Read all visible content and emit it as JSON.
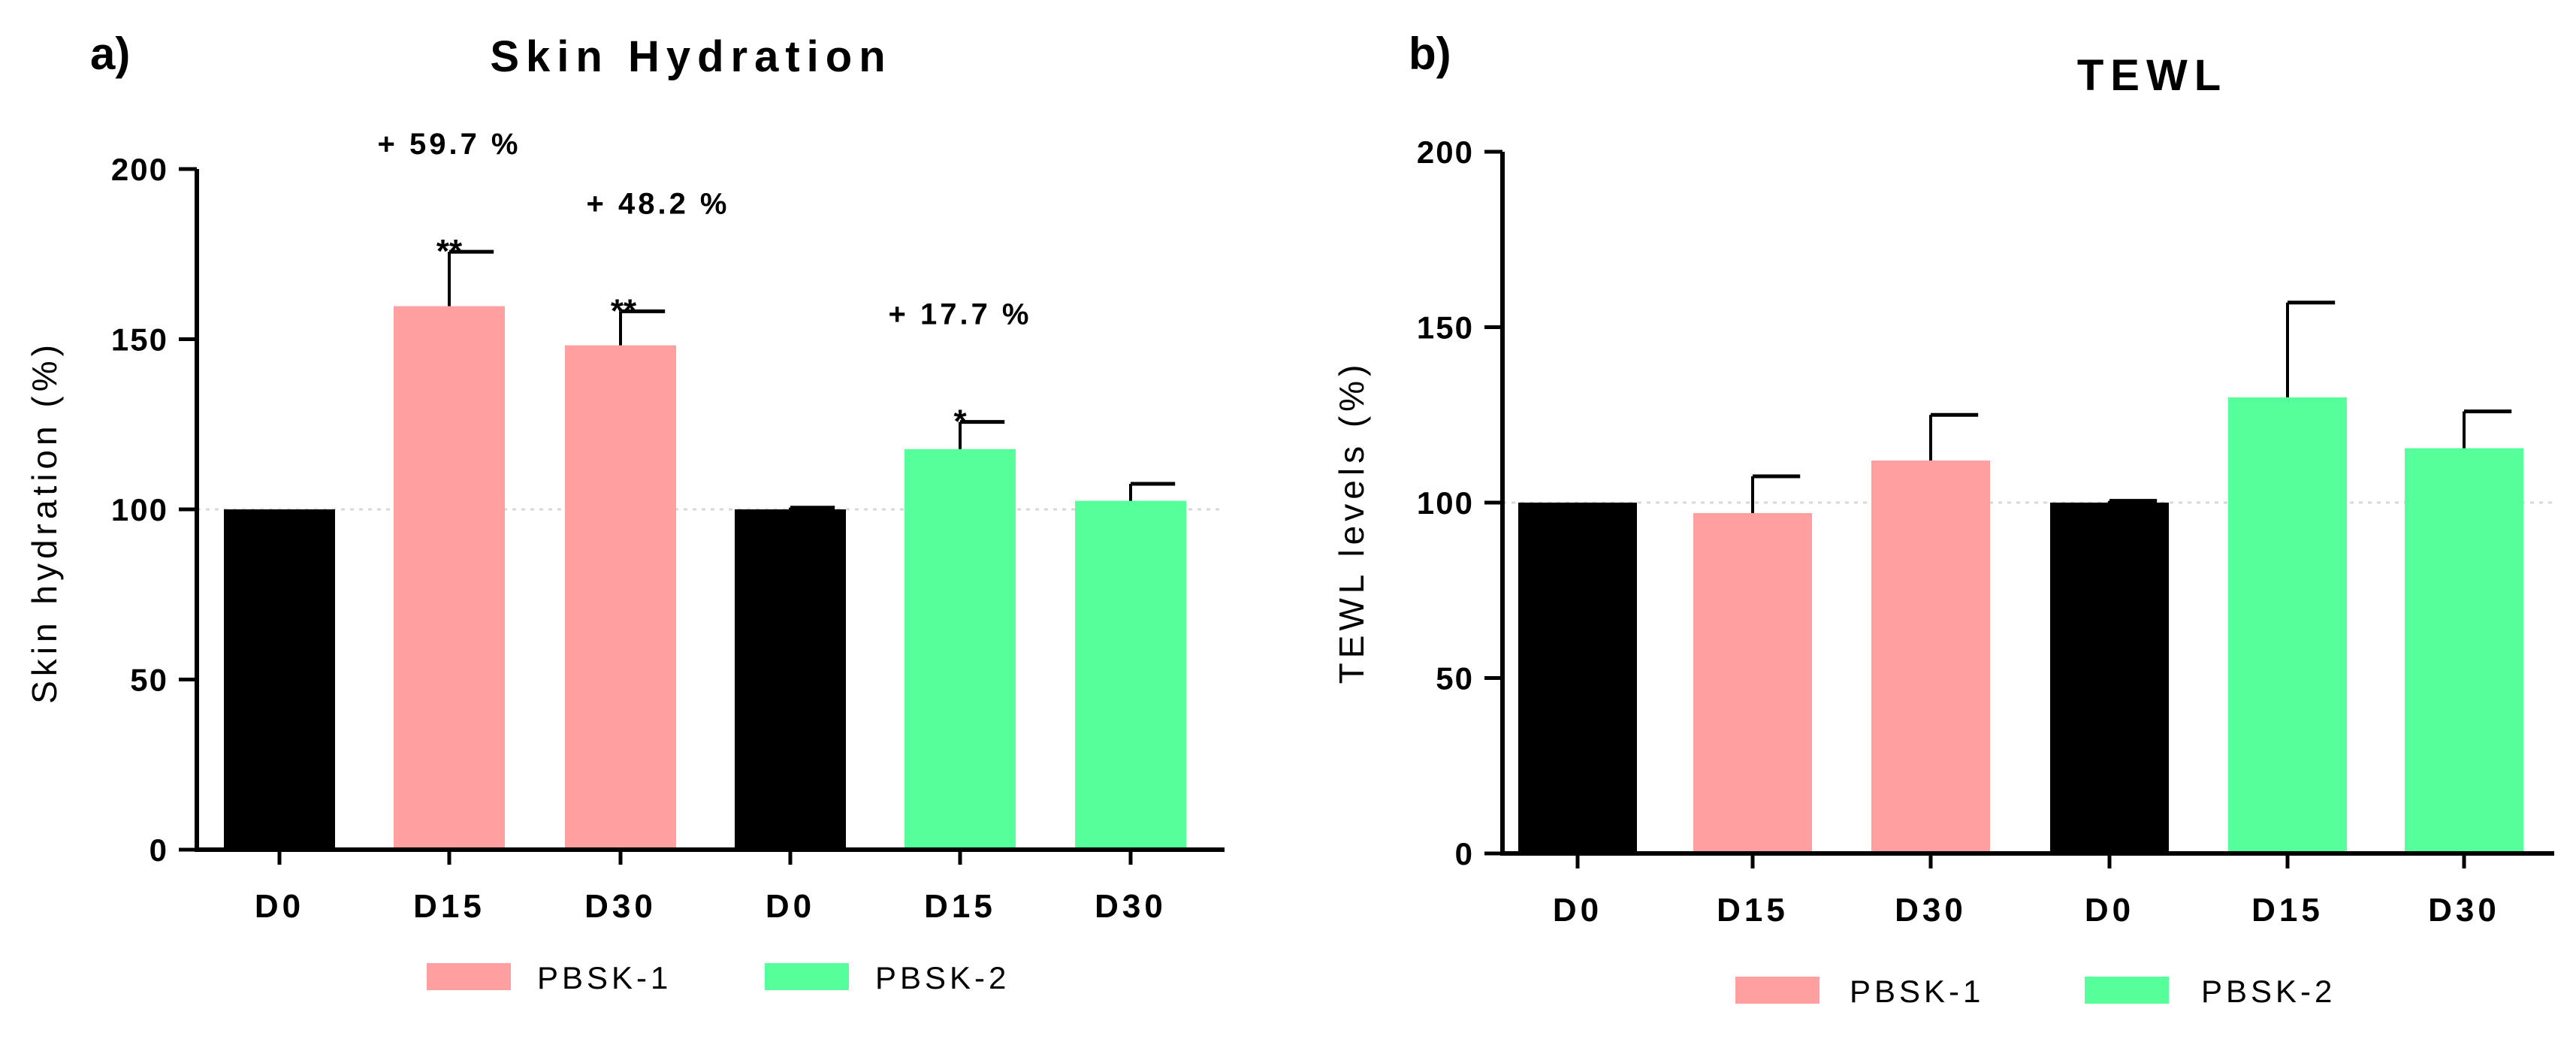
{
  "colors": {
    "D0": "#000000",
    "PBSK-1": "#ff9f9f",
    "PBSK-2": "#55ff9a"
  },
  "chart_data": [
    {
      "panel": "a)",
      "type": "bar",
      "title": "Skin Hydration",
      "ylabel": "Skin hydration (%)",
      "xlabel": "",
      "ylim": [
        0,
        200
      ],
      "yticks": [
        0,
        50,
        100,
        150,
        200
      ],
      "reference_line": 100,
      "legend": {
        "placement": "bottom",
        "entries": [
          "PBSK-1",
          "PBSK-2"
        ]
      },
      "categories": [
        "D0",
        "D15",
        "D30",
        "D0",
        "D15",
        "D30"
      ],
      "values": [
        100,
        159.7,
        148.2,
        100,
        117.7,
        102.5
      ],
      "errors": [
        0,
        16,
        10,
        0.5,
        8,
        5
      ],
      "groups": [
        "D0",
        "PBSK-1",
        "PBSK-1",
        "D0",
        "PBSK-2",
        "PBSK-2"
      ],
      "annotations": [
        {
          "index": 1,
          "pct": "+ 59.7 %",
          "sig": "**"
        },
        {
          "index": 2,
          "pct": "+ 48.2 %",
          "sig": "**"
        },
        {
          "index": 4,
          "pct": "+ 17.7 %",
          "sig": "*"
        }
      ]
    },
    {
      "panel": "b)",
      "type": "bar",
      "title": "TEWL",
      "ylabel": "TEWL levels (%)",
      "xlabel": "",
      "ylim": [
        0,
        200
      ],
      "yticks": [
        0,
        50,
        100,
        150,
        200
      ],
      "reference_line": 100,
      "legend": {
        "placement": "bottom",
        "entries": [
          "PBSK-1",
          "PBSK-2"
        ]
      },
      "categories": [
        "D0",
        "D15",
        "D30",
        "D0",
        "D15",
        "D30"
      ],
      "values": [
        100,
        97,
        112,
        100,
        130,
        115.5
      ],
      "errors": [
        0,
        10.5,
        13,
        0.5,
        27,
        10.5
      ],
      "groups": [
        "D0",
        "PBSK-1",
        "PBSK-1",
        "D0",
        "PBSK-2",
        "PBSK-2"
      ],
      "annotations": []
    }
  ]
}
